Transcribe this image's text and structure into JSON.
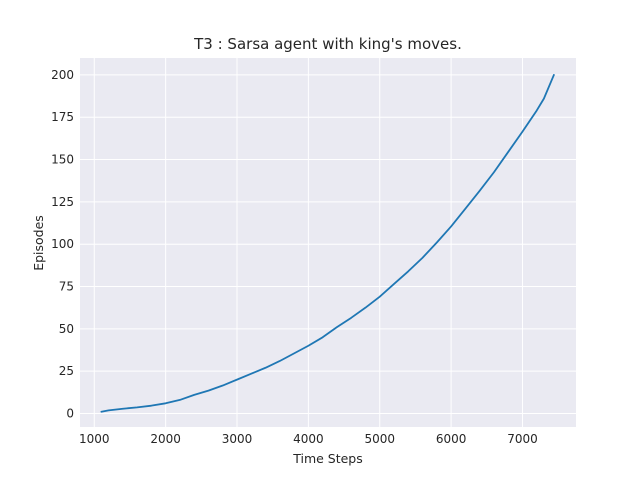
{
  "chart_data": {
    "type": "line",
    "title": "T3 : Sarsa agent with king's moves.",
    "xlabel": "Time Steps",
    "ylabel": "Episodes",
    "xlim": [
      800,
      7750
    ],
    "ylim": [
      -8,
      210
    ],
    "xticks": [
      1000,
      2000,
      3000,
      4000,
      5000,
      6000,
      7000
    ],
    "yticks": [
      0,
      25,
      50,
      75,
      100,
      125,
      150,
      175,
      200
    ],
    "grid": true,
    "background": "#eaeaf2",
    "series": [
      {
        "color": "#1f77b4",
        "x": [
          1100,
          1200,
          1400,
          1600,
          1800,
          2000,
          2200,
          2400,
          2600,
          2800,
          3000,
          3200,
          3400,
          3600,
          3800,
          4000,
          4200,
          4400,
          4600,
          4800,
          5000,
          5200,
          5400,
          5600,
          5800,
          6000,
          6200,
          6400,
          6600,
          6800,
          7000,
          7200,
          7300,
          7440
        ],
        "y": [
          1,
          1.8,
          2.8,
          3.6,
          4.6,
          6,
          8,
          11,
          13.5,
          16.5,
          20,
          23.5,
          27,
          31,
          35.5,
          40,
          45,
          51,
          56.5,
          62.5,
          69,
          76.5,
          84,
          92,
          101,
          110.5,
          121,
          131.5,
          142.5,
          154.5,
          166.5,
          179,
          186,
          200
        ]
      }
    ]
  }
}
